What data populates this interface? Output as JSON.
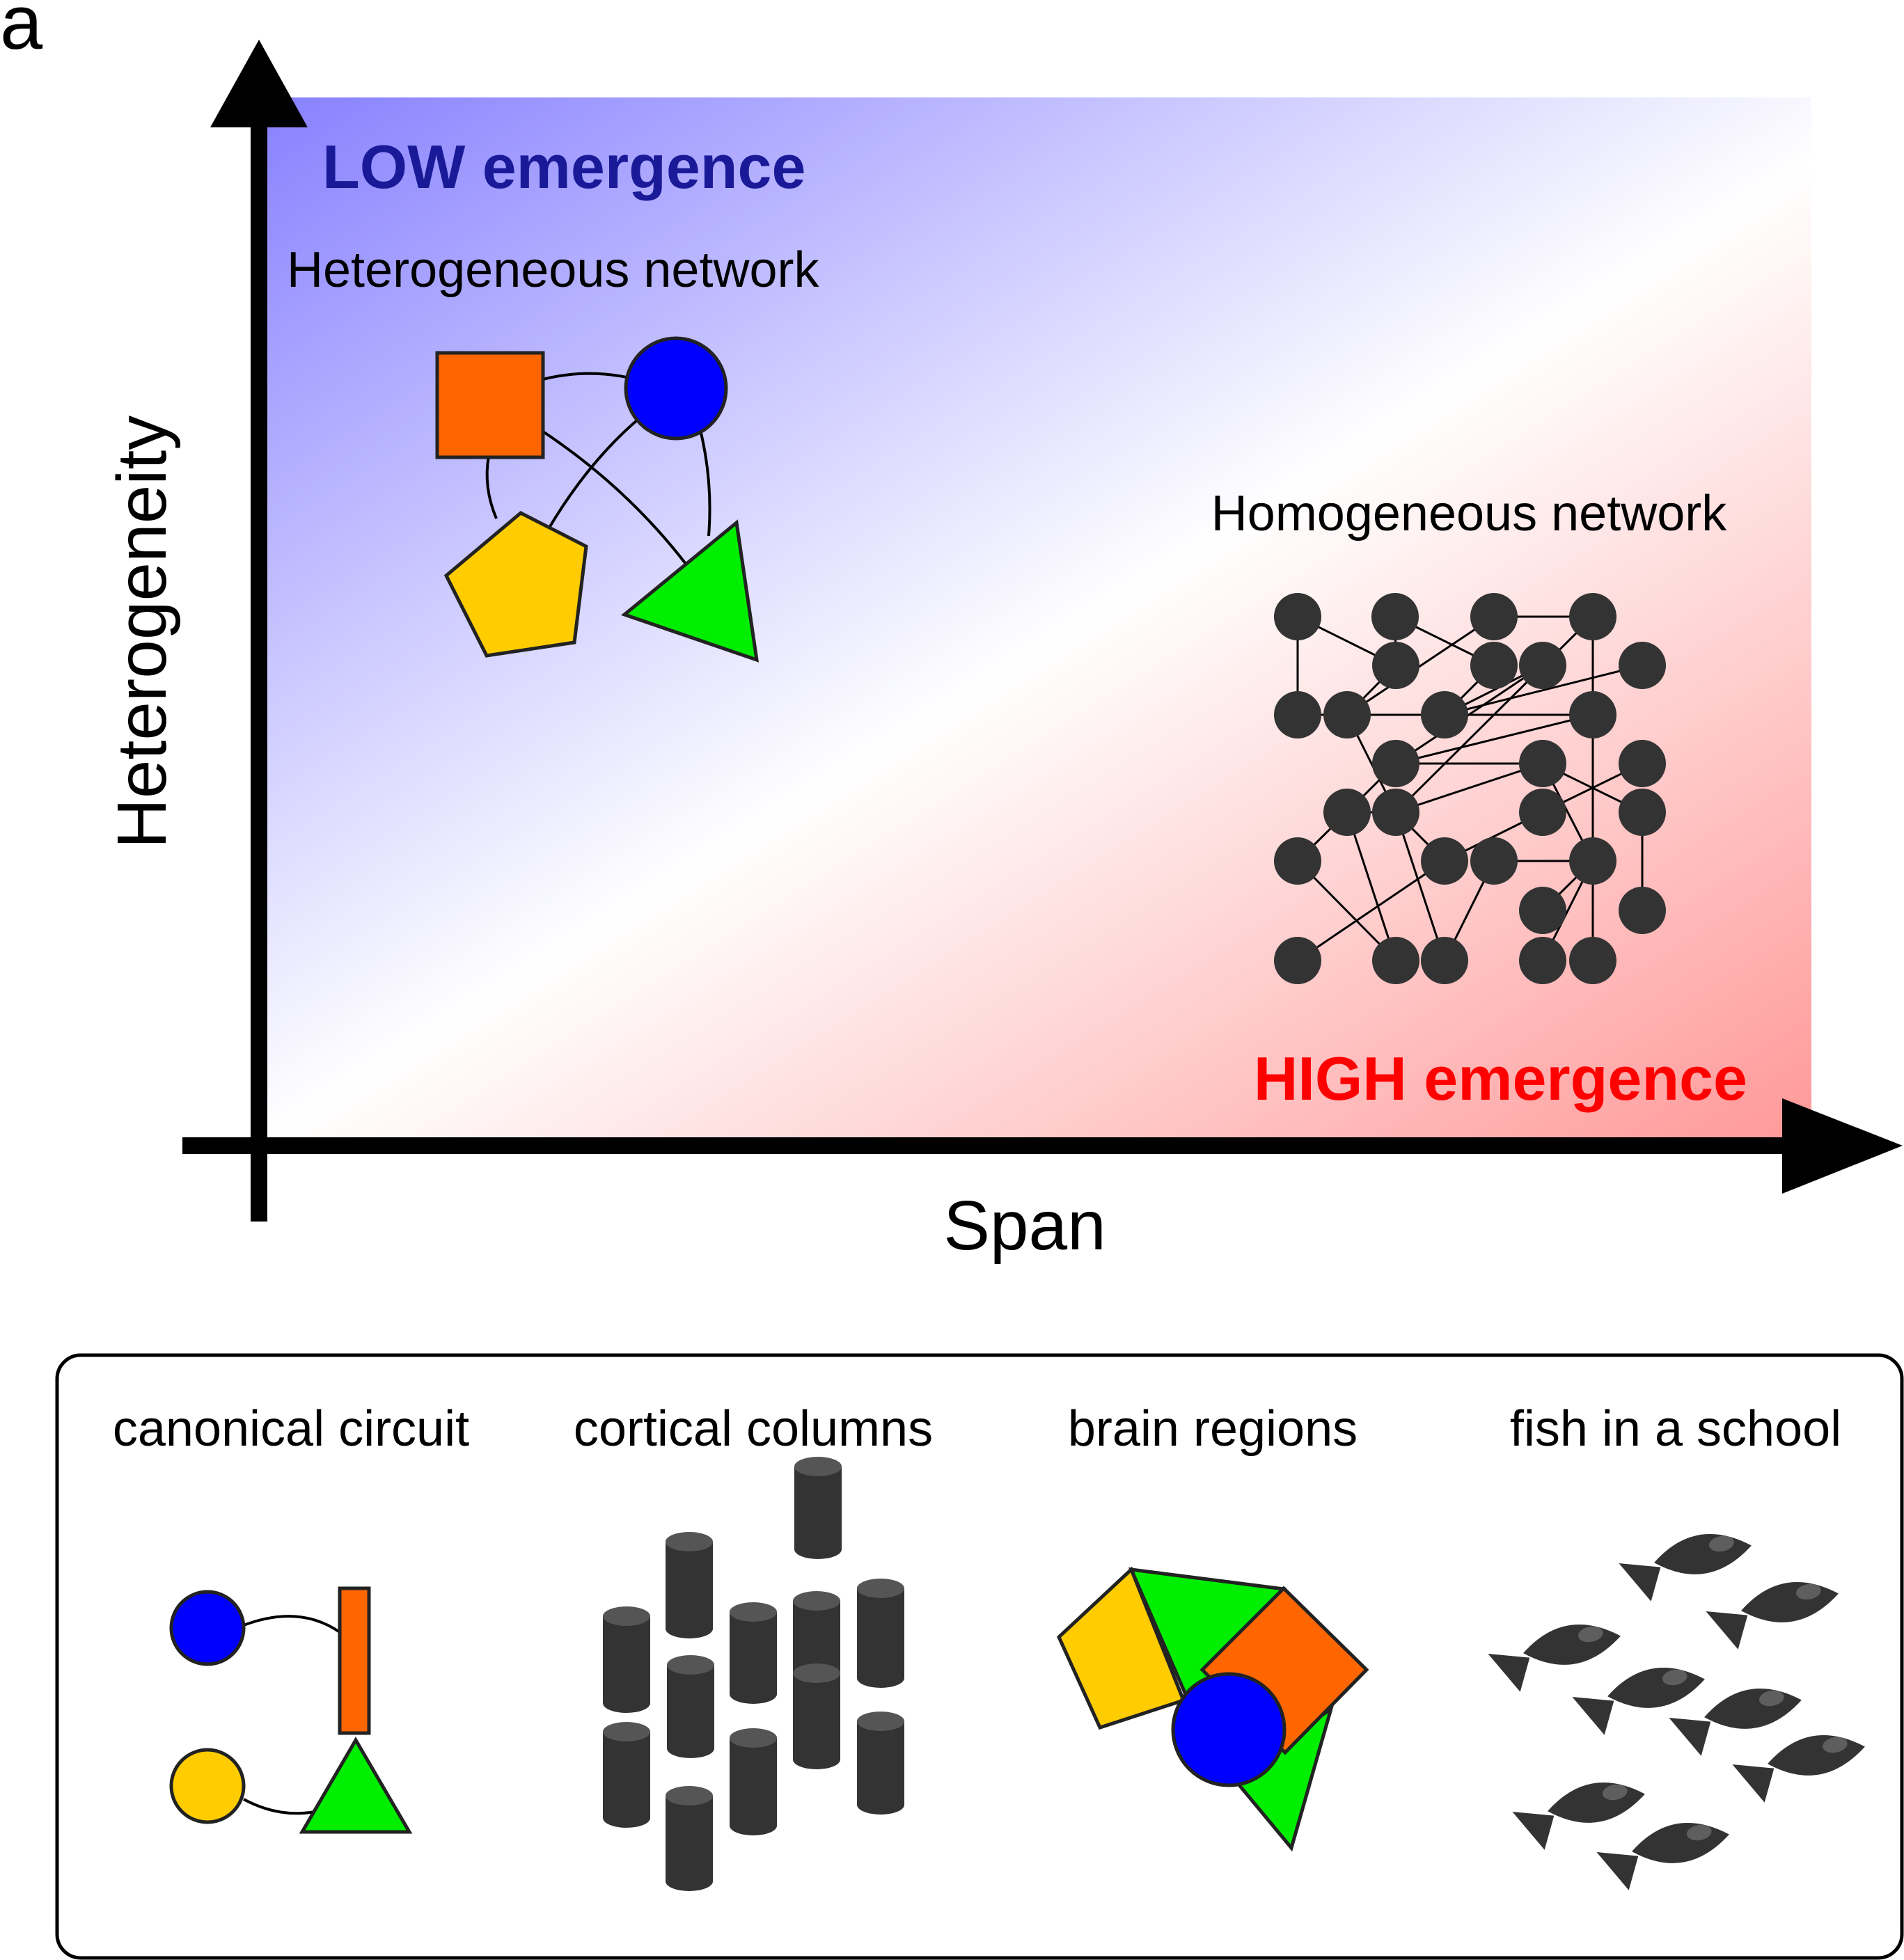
{
  "panel_label": "a",
  "axes": {
    "y_label": "Heterogeneity",
    "x_label": "Span"
  },
  "regions": {
    "low_emergence": "LOW emergence",
    "high_emergence": "HIGH emergence"
  },
  "networks": {
    "heterogeneous": "Heterogeneous network",
    "homogeneous": "Homogeneous network"
  },
  "examples": [
    "canonical circuit",
    "cortical columns",
    "brain regions",
    "fish in a school"
  ],
  "colors": {
    "low": "#1a1a99",
    "high": "#ff0000",
    "blue_node": "#0000ff",
    "orange_node": "#ff6600",
    "yellow_node": "#ffcc00",
    "green_node": "#00ee00",
    "dark_node": "#333333",
    "gradient_blue": "#7f78ff",
    "gradient_red": "#ff8a8a"
  }
}
